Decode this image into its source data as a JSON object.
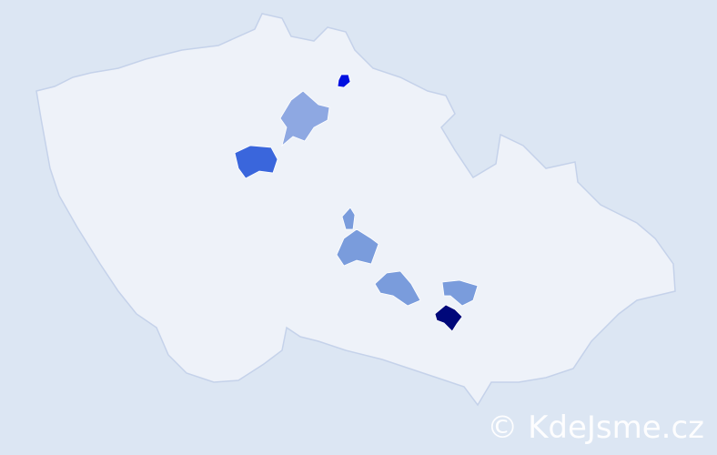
{
  "map": {
    "country_fill": "#eef2f9",
    "border_color": "#c5d2ea",
    "background": "#dce6f3",
    "highlighted_districts": [
      {
        "id": "north-small",
        "color": "#0010e0"
      },
      {
        "id": "north-central",
        "color": "#8ea8e2"
      },
      {
        "id": "central-west",
        "color": "#3a66dc"
      },
      {
        "id": "central-small",
        "color": "#7a9cdc"
      },
      {
        "id": "central",
        "color": "#7a9cdc"
      },
      {
        "id": "south-central",
        "color": "#7a9cdc"
      },
      {
        "id": "south-east",
        "color": "#7a9cdc"
      },
      {
        "id": "south-east-dark",
        "color": "#00087a"
      }
    ]
  },
  "watermark": "© KdeJsme.cz"
}
